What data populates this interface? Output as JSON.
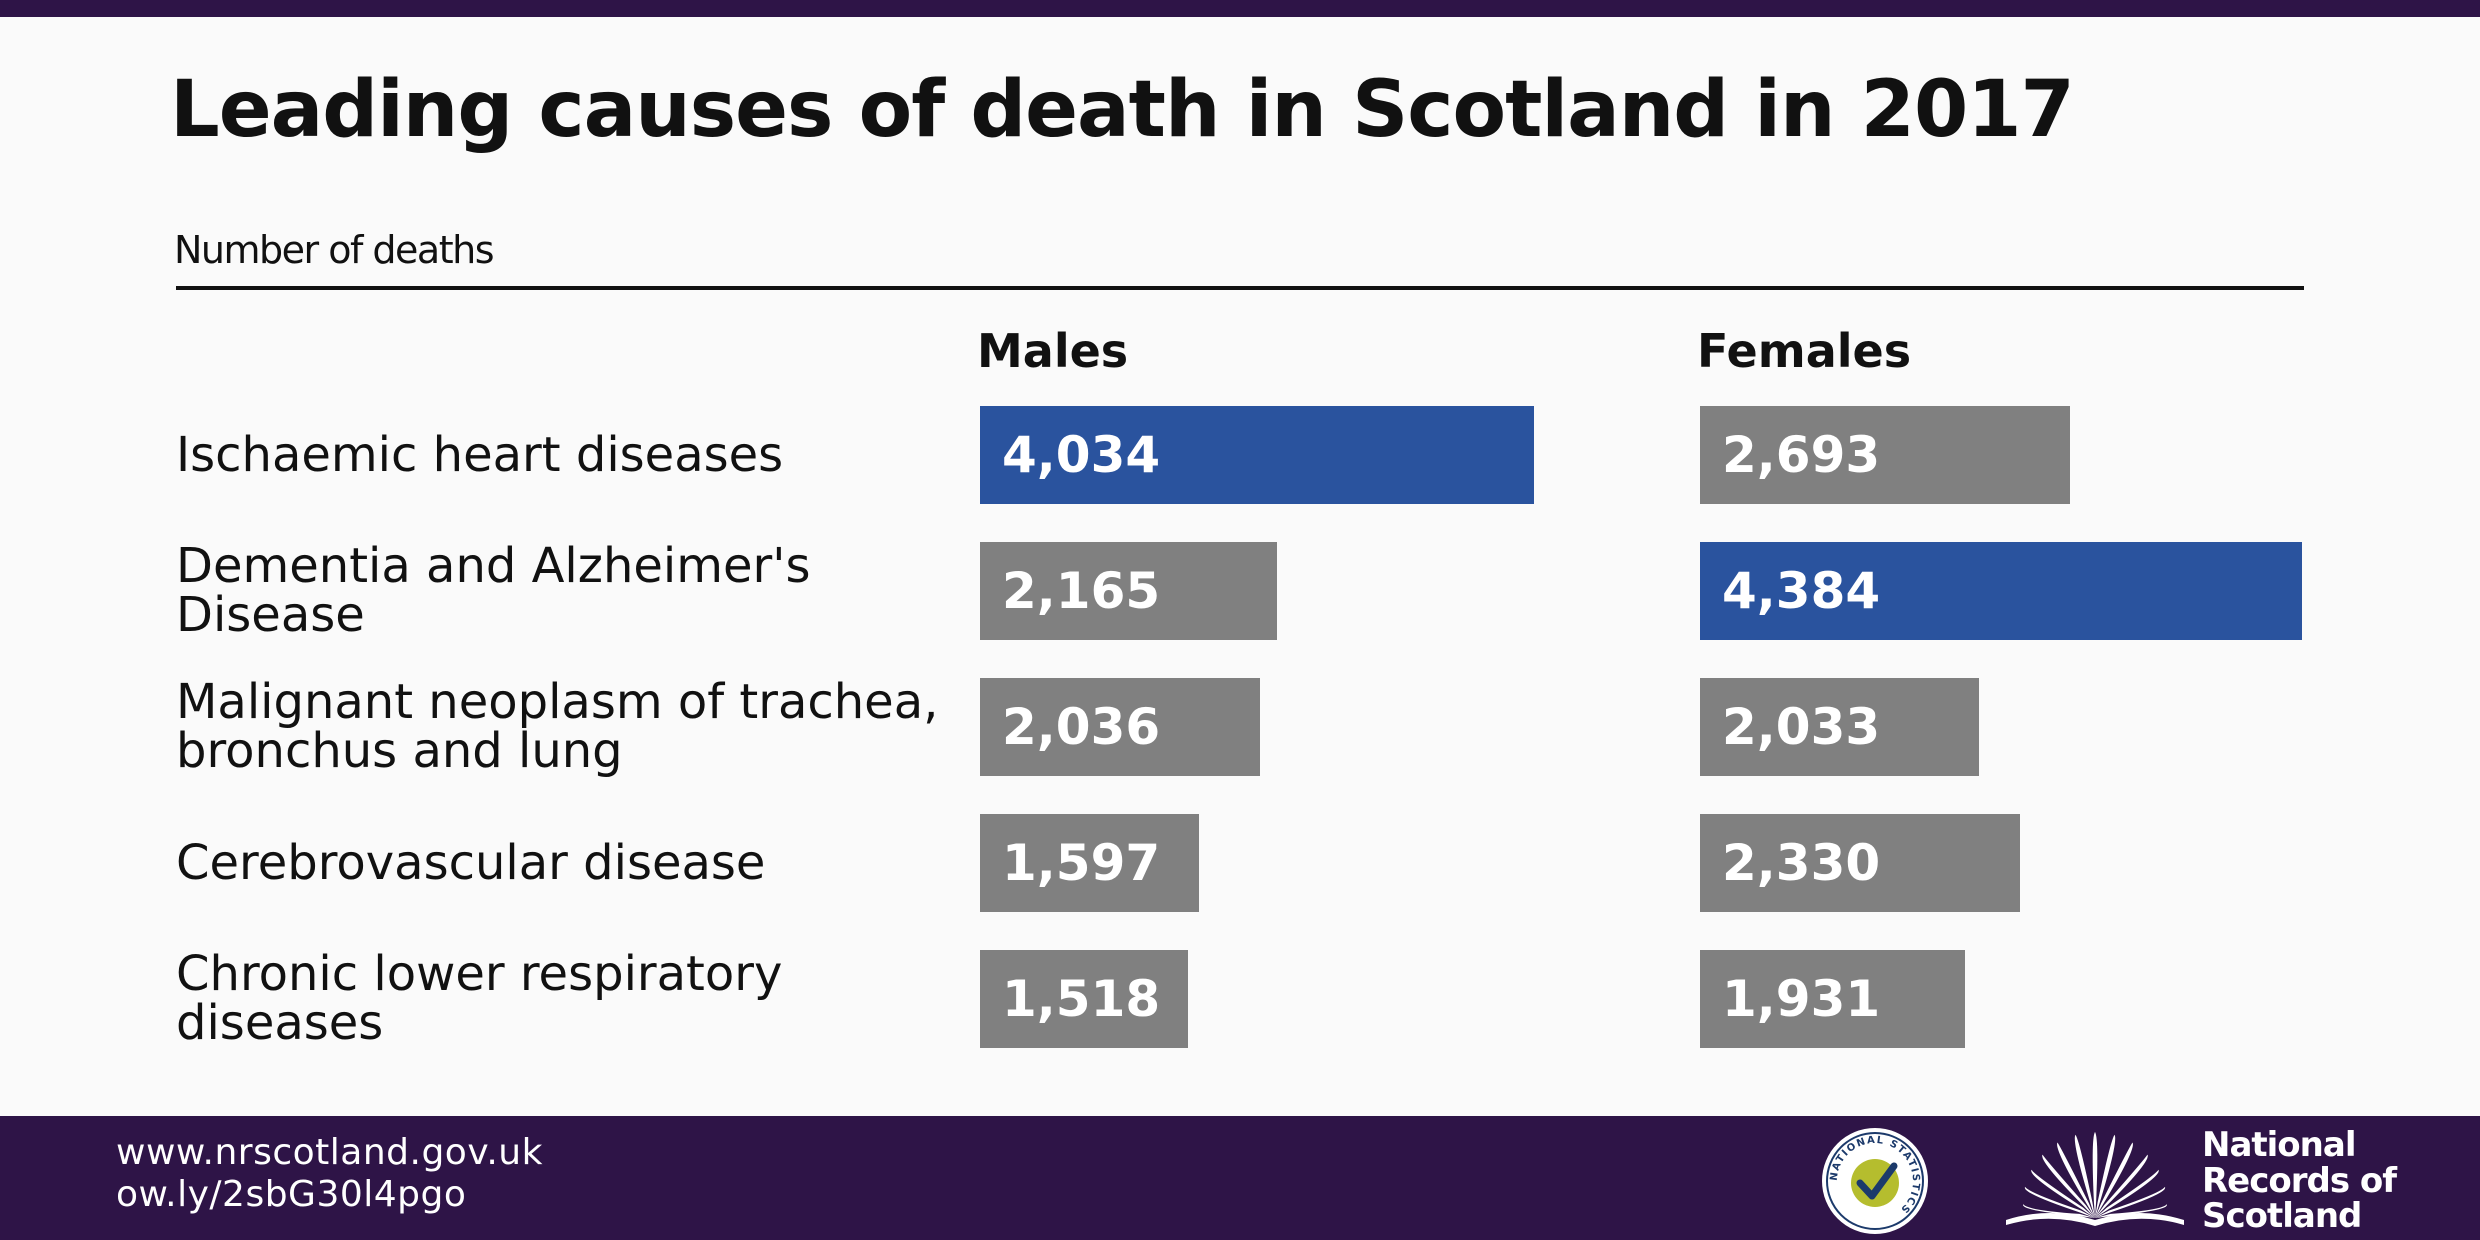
{
  "header": {
    "title": "Leading causes of death in Scotland in 2017",
    "subtitle": "Number of deaths"
  },
  "colors": {
    "highlight": "#2a539e",
    "normal": "#808080",
    "brand_purple": "#2e1447"
  },
  "chart_data": {
    "type": "bar",
    "title": "Leading causes of death in Scotland in 2017",
    "subtitle": "Number of deaths",
    "categories": [
      "Ischaemic heart diseases",
      "Dementia and Alzheimer's Disease",
      "Malignant neoplasm of trachea,\nbronchus and lung",
      "Cerebrovascular disease",
      "Chronic lower respiratory\ndiseases"
    ],
    "series": [
      {
        "name": "Males",
        "values": [
          4034,
          2165,
          2036,
          1597,
          1518
        ],
        "labels": [
          "4,034",
          "2,165",
          "2,036",
          "1,597",
          "1,518"
        ],
        "highlight_index": 0
      },
      {
        "name": "Females",
        "values": [
          2693,
          4384,
          2033,
          2330,
          1931
        ],
        "labels": [
          "2,693",
          "4,384",
          "2,033",
          "2,330",
          "1,931"
        ],
        "highlight_index": 1
      }
    ],
    "xlim": [
      0,
      4384
    ],
    "grid": false,
    "legend": "none"
  },
  "footer": {
    "url1": "www.nrscotland.gov.uk",
    "url2": "ow.ly/2sbG30l4pgo",
    "ns_logo_text": "NATIONAL STATISTICS",
    "nrs_name": [
      "National",
      "Records of",
      "Scotland"
    ],
    "ns_icon": "national-statistics-tick-icon",
    "nrs_icon": "open-book-sunburst-icon"
  }
}
